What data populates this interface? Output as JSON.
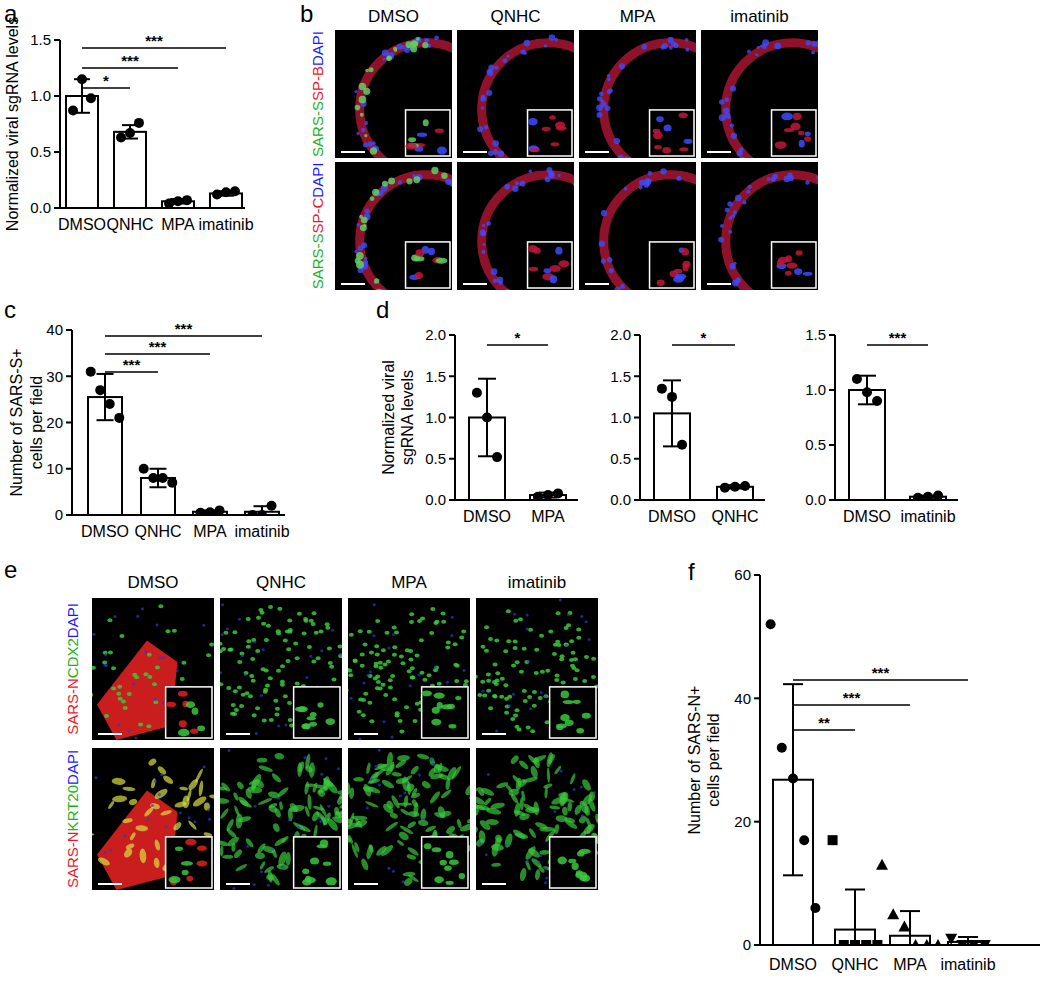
{
  "chart_data": [
    {
      "type": "bar",
      "panel_label": "a",
      "y_label": [
        "Normalized viral sgRNA levels"
      ],
      "categories": [
        "DMSO",
        "QNHC",
        "MPA",
        "imatinib"
      ],
      "values": [
        1.0,
        0.68,
        0.06,
        0.13
      ],
      "errors": [
        0.15,
        0.06,
        0.02,
        0.02
      ],
      "points": [
        [
          0.87,
          1.15,
          0.98
        ],
        [
          0.63,
          0.67,
          0.76
        ],
        [
          0.04,
          0.06,
          0.07
        ],
        [
          0.12,
          0.14,
          0.15
        ]
      ],
      "marker": "circle",
      "color": "#ffffff",
      "ylim": [
        0,
        1.5
      ],
      "yticks": [
        {
          "value": 0,
          "label": "0.0"
        },
        0.5,
        {
          "value": 1,
          "label": "1.0"
        },
        1.5
      ],
      "significance": [
        {
          "from": 0,
          "to": 1,
          "label": "*"
        },
        {
          "from": 0,
          "to": 2,
          "label": "***"
        },
        {
          "from": 0,
          "to": 3,
          "label": "***"
        }
      ]
    },
    {
      "type": "bar",
      "panel_label": "c",
      "y_label": [
        "Number of SARS-S+",
        "cells per field"
      ],
      "categories": [
        "DMSO",
        "QNHC",
        "MPA",
        "imatinib"
      ],
      "values": [
        25.5,
        8,
        0.7,
        0.7
      ],
      "errors": [
        5,
        2,
        0.3,
        1.2
      ],
      "points": [
        [
          31,
          27,
          24,
          21
        ],
        [
          10,
          8,
          8,
          7
        ],
        [
          0.5,
          0.6,
          1
        ],
        [
          0,
          0,
          2
        ]
      ],
      "marker": "circle",
      "color": "#ffffff",
      "ylim": [
        0,
        40
      ],
      "yticks": [
        0,
        10,
        20,
        30,
        40
      ],
      "significance": [
        {
          "from": 0,
          "to": 1,
          "label": "***"
        },
        {
          "from": 0,
          "to": 2,
          "label": "***"
        },
        {
          "from": 0,
          "to": 3,
          "label": "***"
        }
      ]
    },
    {
      "type": "bar",
      "panel_label": "d",
      "y_label": [
        "Normalized viral",
        "sgRNA levels"
      ],
      "categories": [
        "DMSO",
        "MPA"
      ],
      "values": [
        1.0,
        0.06
      ],
      "errors": [
        0.47,
        0.03
      ],
      "points": [
        [
          1.3,
          1.0,
          0.52
        ],
        [
          0.04,
          0.06,
          0.08
        ]
      ],
      "marker": "circle",
      "color": "#ffffff",
      "ylim": [
        0,
        2
      ],
      "yticks": [
        {
          "value": 0,
          "label": "0.0"
        },
        0.5,
        {
          "value": 1,
          "label": "1.0"
        },
        1.5,
        {
          "value": 2,
          "label": "2.0"
        }
      ],
      "significance": [
        {
          "from": 0,
          "to": 1,
          "label": "*"
        }
      ]
    },
    {
      "type": "bar",
      "categories": [
        "DMSO",
        "QNHC"
      ],
      "values": [
        1.05,
        0.16
      ],
      "errors": [
        0.4,
        0.02
      ],
      "points": [
        [
          1.35,
          1.25,
          0.67
        ],
        [
          0.15,
          0.16,
          0.17
        ]
      ],
      "marker": "circle",
      "color": "#ffffff",
      "ylim": [
        0,
        2
      ],
      "yticks": [
        {
          "value": 0,
          "label": "0.0"
        },
        0.5,
        {
          "value": 1,
          "label": "1.0"
        },
        1.5,
        {
          "value": 2,
          "label": "2.0"
        }
      ],
      "significance": [
        {
          "from": 0,
          "to": 1,
          "label": "*"
        }
      ]
    },
    {
      "type": "bar",
      "categories": [
        "DMSO",
        "imatinib"
      ],
      "values": [
        1.0,
        0.03
      ],
      "errors": [
        0.13,
        0.01
      ],
      "points": [
        [
          1.1,
          0.98,
          0.9
        ],
        [
          0.02,
          0.03,
          0.04
        ]
      ],
      "marker": "circle",
      "color": "#ffffff",
      "ylim": [
        0,
        1.5
      ],
      "yticks": [
        {
          "value": 0,
          "label": "0.0"
        },
        0.5,
        {
          "value": 1,
          "label": "1.0"
        },
        1.5
      ],
      "significance": [
        {
          "from": 0,
          "to": 1,
          "label": "***"
        }
      ]
    },
    {
      "type": "bar",
      "panel_label": "f",
      "y_label": [
        "Number of SARS-N+",
        "cells per field"
      ],
      "categories": [
        "DMSO",
        "QNHC",
        "MPA",
        "imatinib"
      ],
      "values": [
        26.8,
        2.5,
        1.5,
        0.5
      ],
      "errors": [
        15.5,
        6.5,
        4,
        0.8
      ],
      "points": [
        [
          52,
          32,
          27,
          17,
          6
        ],
        [
          17,
          0,
          0,
          0,
          0
        ],
        [
          13,
          5,
          3,
          0,
          0,
          0
        ],
        [
          1,
          0,
          0,
          0
        ]
      ],
      "marker": [
        "circle",
        "square",
        "triangle",
        "triangle-down"
      ],
      "color": "#ffffff",
      "ylim": [
        0,
        60
      ],
      "yticks": [
        0,
        20,
        40,
        60
      ],
      "significance": [
        {
          "from": 0,
          "to": 1,
          "label": "**"
        },
        {
          "from": 0,
          "to": 2,
          "label": "***"
        },
        {
          "from": 0,
          "to": 3,
          "label": "***"
        }
      ]
    }
  ],
  "image_panels": [
    {
      "panel_label": "b",
      "columns": [
        "DMSO",
        "QNHC",
        "MPA",
        "imatinib"
      ],
      "rows": [
        {
          "labels": [
            {
              "text": "SARS-S",
              "color": "#22b022"
            },
            {
              "text": "SP-B",
              "color": "#e8192c"
            },
            {
              "text": "DAPI",
              "color": "#1a1aff"
            }
          ]
        },
        {
          "labels": [
            {
              "text": "SARS-S",
              "color": "#22b022"
            },
            {
              "text": "SP-C",
              "color": "#e8192c"
            },
            {
              "text": "DAPI",
              "color": "#1a1aff"
            }
          ]
        }
      ]
    },
    {
      "panel_label": "e",
      "columns": [
        "DMSO",
        "QNHC",
        "MPA",
        "imatinib"
      ],
      "rows": [
        {
          "labels": [
            {
              "text": "SARS-N",
              "color": "#e8192c"
            },
            {
              "text": "CDX2",
              "color": "#22b022"
            },
            {
              "text": "DAPI",
              "color": "#1a1aff"
            }
          ]
        },
        {
          "labels": [
            {
              "text": "SARS-N",
              "color": "#e8192c"
            },
            {
              "text": "KRT20",
              "color": "#22b022"
            },
            {
              "text": "DAPI",
              "color": "#1a1aff"
            }
          ]
        }
      ]
    }
  ]
}
